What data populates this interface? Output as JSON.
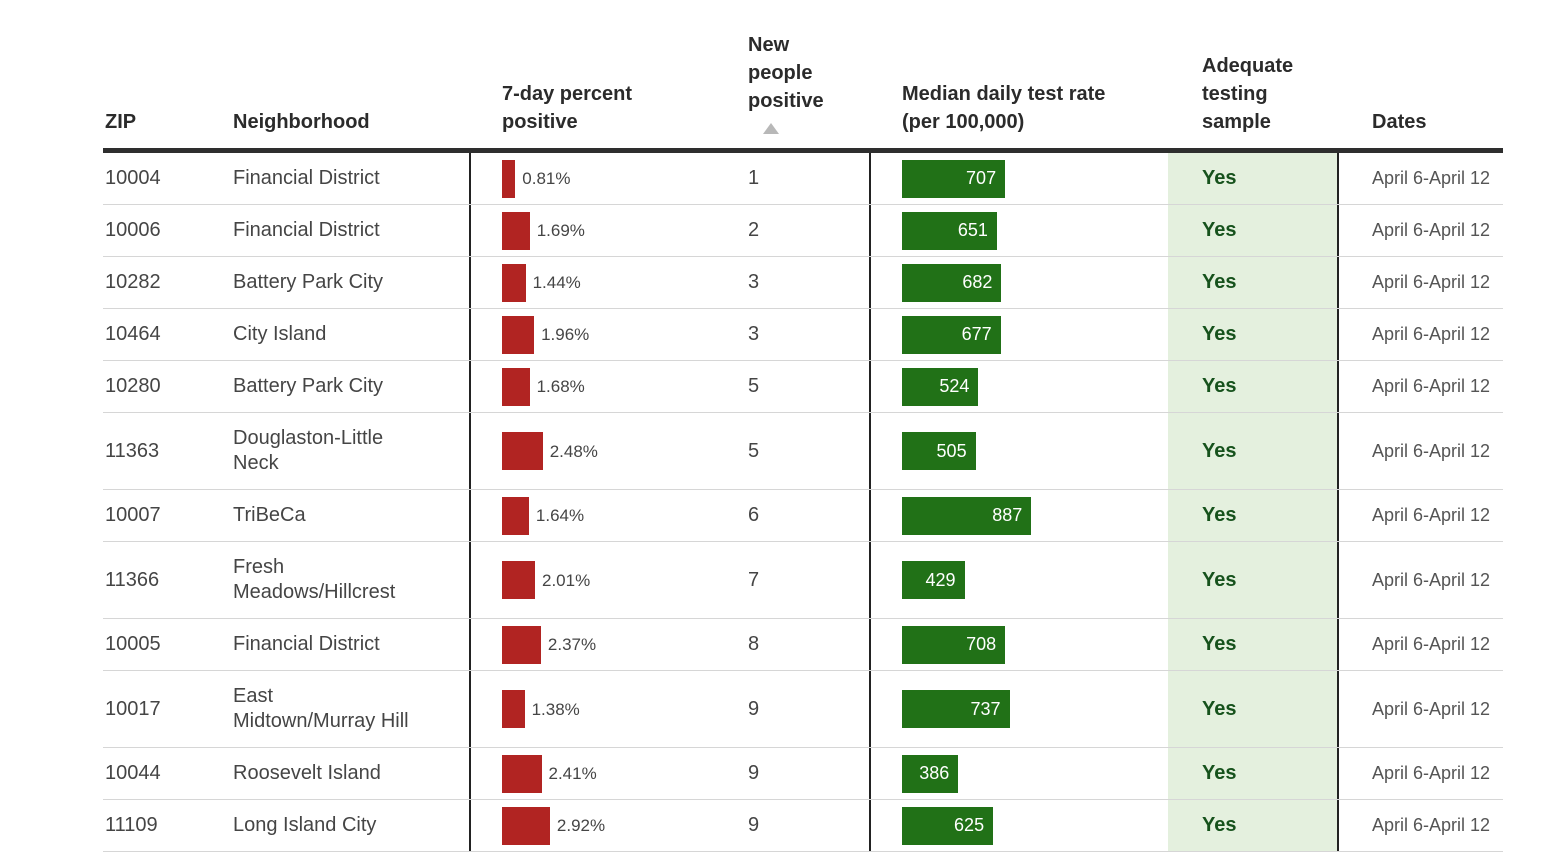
{
  "header": {
    "zip": "ZIP",
    "neighborhood": "Neighborhood",
    "pct": "7-day percent positive",
    "new_positive": "New people positive",
    "test_rate": "Median daily test rate (per 100,000)",
    "adequate": "Adequate testing sample",
    "dates": "Dates",
    "sort_icon": "sort-ascending-arrow",
    "sorted_column": "New people positive",
    "sort_direction": "ascending"
  },
  "colors": {
    "positive_bar": "#b12422",
    "test_rate_bar": "#217117",
    "adequate_bg": "#e4f0de",
    "adequate_text": "#16521c",
    "header_text": "#2b2b2b",
    "body_text": "#454545",
    "date_text": "#555555",
    "row_line": "#d6d6d6",
    "column_line": "#222222",
    "sort_arrow": "#b8b8b8"
  },
  "rows": [
    {
      "zip": "10004",
      "neighborhood": "Financial District",
      "pct": 0.81,
      "pct_label": "0.81%",
      "new_positive": "1",
      "test_rate": 707,
      "adequate": "Yes",
      "dates": "April 6-April 12"
    },
    {
      "zip": "10006",
      "neighborhood": "Financial District",
      "pct": 1.69,
      "pct_label": "1.69%",
      "new_positive": "2",
      "test_rate": 651,
      "adequate": "Yes",
      "dates": "April 6-April 12"
    },
    {
      "zip": "10282",
      "neighborhood": "Battery Park City",
      "pct": 1.44,
      "pct_label": "1.44%",
      "new_positive": "3",
      "test_rate": 682,
      "adequate": "Yes",
      "dates": "April 6-April 12"
    },
    {
      "zip": "10464",
      "neighborhood": "City Island",
      "pct": 1.96,
      "pct_label": "1.96%",
      "new_positive": "3",
      "test_rate": 677,
      "adequate": "Yes",
      "dates": "April 6-April 12"
    },
    {
      "zip": "10280",
      "neighborhood": "Battery Park City",
      "pct": 1.68,
      "pct_label": "1.68%",
      "new_positive": "5",
      "test_rate": 524,
      "adequate": "Yes",
      "dates": "April 6-April 12"
    },
    {
      "zip": "11363",
      "neighborhood": "Douglaston-Little\nNeck",
      "pct": 2.48,
      "pct_label": "2.48%",
      "new_positive": "5",
      "test_rate": 505,
      "adequate": "Yes",
      "dates": "April 6-April 12"
    },
    {
      "zip": "10007",
      "neighborhood": "TriBeCa",
      "pct": 1.64,
      "pct_label": "1.64%",
      "new_positive": "6",
      "test_rate": 887,
      "adequate": "Yes",
      "dates": "April 6-April 12"
    },
    {
      "zip": "11366",
      "neighborhood": "Fresh\nMeadows/Hillcrest",
      "pct": 2.01,
      "pct_label": "2.01%",
      "new_positive": "7",
      "test_rate": 429,
      "adequate": "Yes",
      "dates": "April 6-April 12"
    },
    {
      "zip": "10005",
      "neighborhood": "Financial District",
      "pct": 2.37,
      "pct_label": "2.37%",
      "new_positive": "8",
      "test_rate": 708,
      "adequate": "Yes",
      "dates": "April 6-April 12"
    },
    {
      "zip": "10017",
      "neighborhood": "East\nMidtown/Murray Hill",
      "pct": 1.38,
      "pct_label": "1.38%",
      "new_positive": "9",
      "test_rate": 737,
      "adequate": "Yes",
      "dates": "April 6-April 12"
    },
    {
      "zip": "10044",
      "neighborhood": "Roosevelt Island",
      "pct": 2.41,
      "pct_label": "2.41%",
      "new_positive": "9",
      "test_rate": 386,
      "adequate": "Yes",
      "dates": "April 6-April 12"
    },
    {
      "zip": "11109",
      "neighborhood": "Long Island City",
      "pct": 2.92,
      "pct_label": "2.92%",
      "new_positive": "9",
      "test_rate": 625,
      "adequate": "Yes",
      "dates": "April 6-April 12"
    }
  ]
}
